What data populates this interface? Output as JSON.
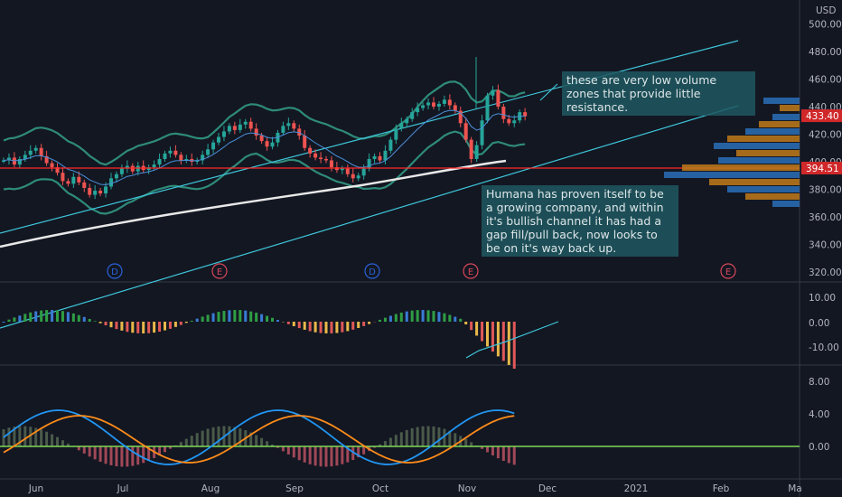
{
  "currency": "USD",
  "price_axis": [
    "500.00",
    "480.00",
    "460.00",
    "440.00",
    "420.00",
    "400.00",
    "380.00",
    "360.00",
    "340.00",
    "320.00"
  ],
  "last_price": "433.40",
  "hline_price": "394.51",
  "macd_axis": [
    "10.00",
    "0.00",
    "-10.00"
  ],
  "osc_axis": [
    "8.00",
    "4.00",
    "0.00"
  ],
  "time_axis": [
    "Jun",
    "Jul",
    "Aug",
    "Sep",
    "Oct",
    "Nov",
    "Dec",
    "2021",
    "Feb",
    "Ma"
  ],
  "events": [
    "D",
    "E",
    "D",
    "E",
    "E"
  ],
  "annotations": {
    "volume_note": "these are very low volume zones that provide little resistance.",
    "thesis_note": "Humana has proven itself to be a growing company, and within it's bullish channel it has had a gap fill/pull back, now looks to be on it's way back up."
  },
  "colors": {
    "bg": "#131722",
    "up": "#26a69a",
    "down": "#ef5350",
    "hline": "#ff2a2a",
    "channel": "#3ec6da",
    "bands": "#2e8b7a",
    "sma200": "#e8e8e8",
    "label_cyan": "#2a8ba0",
    "label_red": "#d0282a"
  },
  "chart_data": {
    "type": "candlestick",
    "price_range": [
      310,
      510
    ],
    "series": {
      "close": [
        401,
        403,
        398,
        402,
        405,
        408,
        410,
        404,
        399,
        396,
        392,
        386,
        384,
        389,
        385,
        381,
        376,
        379,
        377,
        382,
        388,
        391,
        395,
        397,
        393,
        397,
        394,
        396,
        398,
        402,
        406,
        408,
        405,
        401,
        402,
        400,
        401,
        405,
        409,
        414,
        418,
        422,
        426,
        423,
        427,
        429,
        424,
        419,
        415,
        411,
        414,
        421,
        426,
        428,
        424,
        419,
        410,
        406,
        403,
        402,
        401,
        396,
        394,
        395,
        391,
        388,
        390,
        395,
        402,
        404,
        401,
        408,
        416,
        424,
        428,
        431,
        436,
        439,
        441,
        443,
        440,
        442,
        445,
        441,
        437,
        428,
        416,
        402,
        412,
        430,
        448,
        452,
        440,
        431,
        428,
        430,
        436,
        433
      ]
    },
    "macd_range": [
      -14,
      14
    ],
    "osc_range": [
      -2,
      10
    ]
  }
}
